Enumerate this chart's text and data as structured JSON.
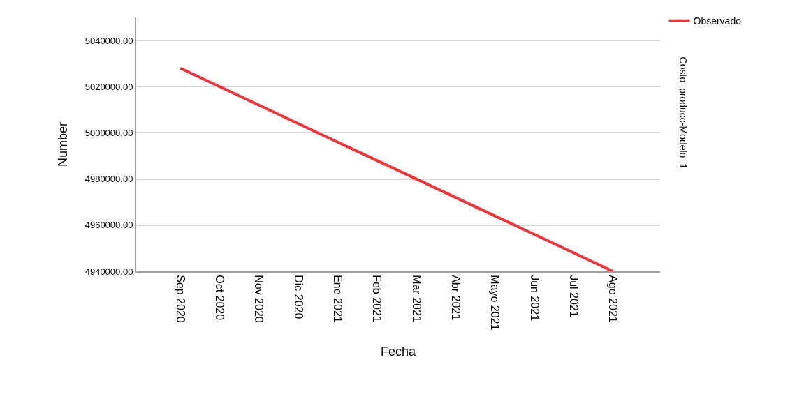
{
  "chart_data": {
    "type": "line",
    "xlabel": "Fecha",
    "ylabel": "Number",
    "categories": [
      "Sep 2020",
      "Oct 2020",
      "Nov 2020",
      "Dic 2020",
      "Ene 2021",
      "Feb 2021",
      "Mar 2021",
      "Abr 2021",
      "Mayo 2021",
      "Jun 2021",
      "Jul 2021",
      "Ago 2021"
    ],
    "series": [
      {
        "name": "Observado",
        "color": "#f2333a",
        "values": [
          5028000,
          5020000,
          5012000,
          5004000,
          4996000,
          4988000,
          4980000,
          4972000,
          4964000,
          4956000,
          4948000,
          4940000
        ]
      }
    ],
    "annotations": [
      "Costo_producc-Modelo_1"
    ],
    "ylim": [
      4940000,
      5050000
    ],
    "yticks": [
      {
        "value": 4940000,
        "label": "4940000,00"
      },
      {
        "value": 4960000,
        "label": "4960000,00"
      },
      {
        "value": 4980000,
        "label": "4980000,00"
      },
      {
        "value": 5000000,
        "label": "5000000,00"
      },
      {
        "value": 5020000,
        "label": "5020000,00"
      },
      {
        "value": 5040000,
        "label": "5040000,00"
      }
    ],
    "grid": "y",
    "legend": "top right",
    "marker": "none",
    "line_style": "solid"
  }
}
